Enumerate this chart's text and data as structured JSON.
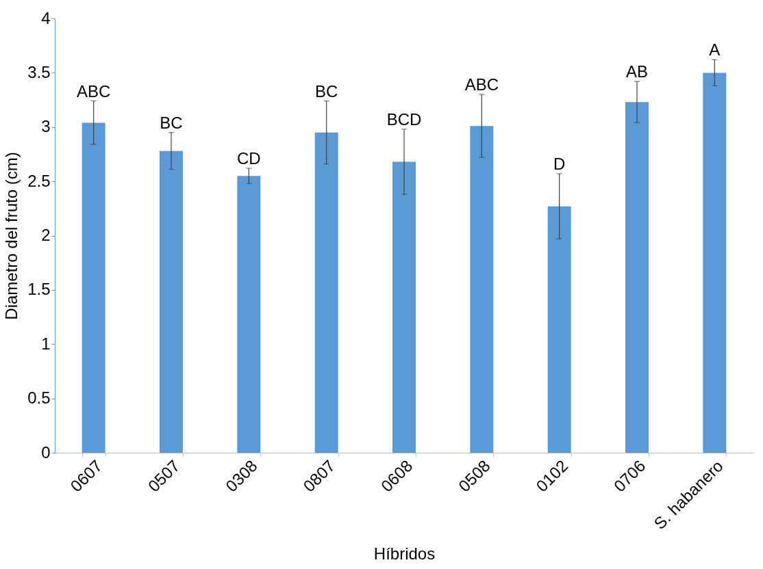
{
  "chart_data": {
    "type": "bar",
    "xlabel": "Híbridos",
    "ylabel": "Diametro del fruto (cm)",
    "categories": [
      "0607",
      "0507",
      "0308",
      "0807",
      "0608",
      "0508",
      "0102",
      "0706",
      "S. habanero"
    ],
    "values": [
      3.04,
      2.78,
      2.55,
      2.95,
      2.68,
      3.01,
      2.27,
      3.23,
      3.5
    ],
    "errors": [
      0.2,
      0.17,
      0.07,
      0.29,
      0.3,
      0.29,
      0.3,
      0.19,
      0.12
    ],
    "value_labels": [
      "ABC",
      "BC",
      "CD",
      "BC",
      "BCD",
      "ABC",
      "D",
      "AB",
      "A"
    ],
    "color": "#5b9bd5",
    "ylim": [
      0,
      4
    ],
    "yticks": [
      0,
      0.5,
      1,
      1.5,
      2,
      2.5,
      3,
      3.5,
      4
    ],
    "grid": false
  }
}
